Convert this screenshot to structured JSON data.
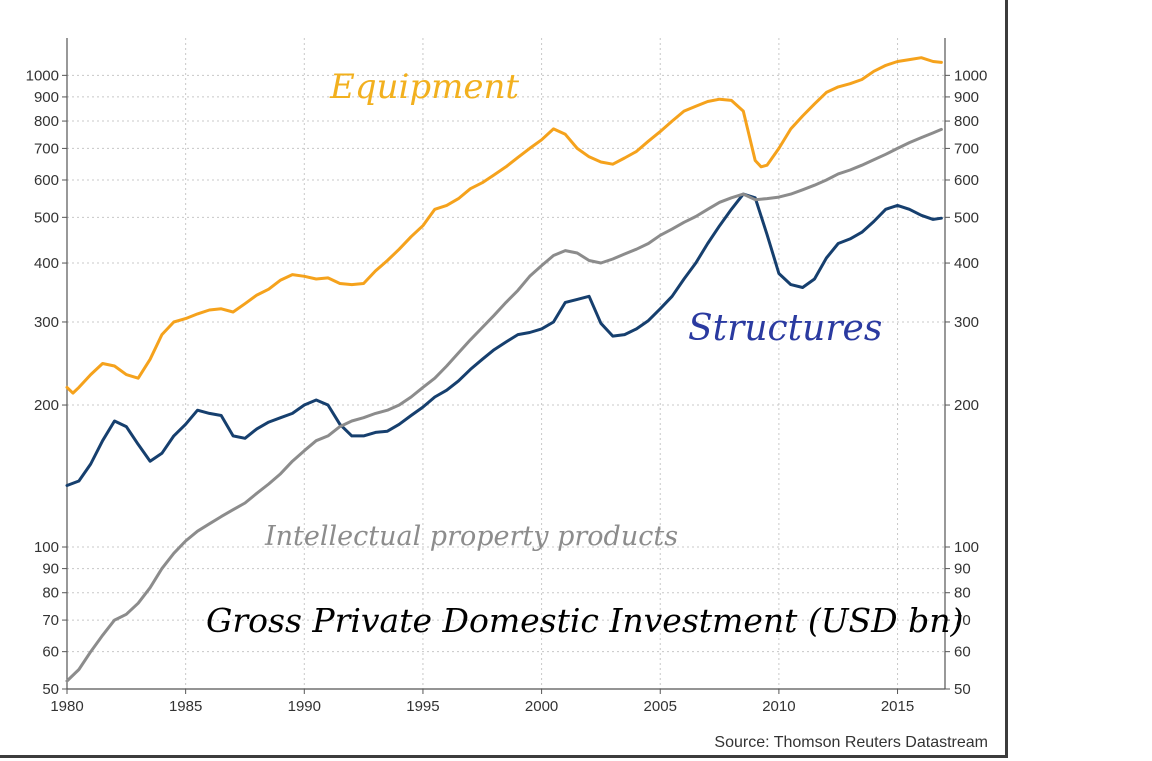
{
  "chart_data": {
    "type": "line",
    "title": "Gross Private Domestic Investment (USD bn)",
    "source": "Source: Thomson Reuters Datastream",
    "yscale": "log",
    "xlim": [
      1980,
      2017
    ],
    "ylim": [
      50,
      1200
    ],
    "grid": true,
    "x_ticks": [
      "1980",
      "1985",
      "1990",
      "1995",
      "2000",
      "2005",
      "2010",
      "2015"
    ],
    "y_ticks_left": [
      "1000",
      "900",
      "800",
      "700",
      "600",
      "500",
      "400",
      "300",
      "200",
      "100",
      "90",
      "80",
      "70",
      "60",
      "50"
    ],
    "y_ticks_right": [
      "1000",
      "900",
      "800",
      "700",
      "600",
      "500",
      "400",
      "300",
      "200",
      "100",
      "90",
      "80",
      "70",
      "60",
      "50"
    ],
    "colors": {
      "equipment": "#f5a21c",
      "structures": "#163f6e",
      "ip": "#8c8c8c",
      "annotation_title": "#000000",
      "annotation_equipment": "#f2b01e",
      "annotation_structures": "#2a3aa0",
      "annotation_ip": "#8c8c8c"
    },
    "series": [
      {
        "name": "Equipment",
        "x": [
          1980.0,
          1980.25,
          1980.5,
          1981.0,
          1981.5,
          1982.0,
          1982.5,
          1983.0,
          1983.5,
          1984.0,
          1984.5,
          1985.0,
          1985.5,
          1986.0,
          1986.5,
          1987.0,
          1987.5,
          1988.0,
          1988.5,
          1989.0,
          1989.5,
          1990.0,
          1990.5,
          1991.0,
          1991.5,
          1992.0,
          1992.5,
          1993.0,
          1993.5,
          1994.0,
          1994.5,
          1995.0,
          1995.5,
          1996.0,
          1996.5,
          1997.0,
          1997.5,
          1998.0,
          1998.5,
          1999.0,
          1999.5,
          2000.0,
          2000.5,
          2001.0,
          2001.5,
          2002.0,
          2002.5,
          2003.0,
          2003.5,
          2004.0,
          2004.5,
          2005.0,
          2005.5,
          2006.0,
          2006.5,
          2007.0,
          2007.5,
          2008.0,
          2008.5,
          2009.0,
          2009.25,
          2009.5,
          2010.0,
          2010.5,
          2011.0,
          2011.5,
          2012.0,
          2012.5,
          2013.0,
          2013.5,
          2014.0,
          2014.5,
          2015.0,
          2015.5,
          2016.0,
          2016.5,
          2016.85
        ],
        "values": [
          218,
          212,
          218,
          232,
          245,
          242,
          232,
          228,
          250,
          282,
          300,
          305,
          312,
          318,
          320,
          315,
          328,
          342,
          352,
          368,
          378,
          375,
          370,
          372,
          362,
          360,
          362,
          385,
          405,
          428,
          455,
          480,
          520,
          530,
          548,
          575,
          592,
          615,
          640,
          670,
          700,
          730,
          770,
          750,
          700,
          672,
          655,
          648,
          668,
          690,
          725,
          760,
          800,
          840,
          860,
          880,
          890,
          885,
          840,
          660,
          640,
          645,
          700,
          770,
          820,
          870,
          920,
          945,
          960,
          980,
          1020,
          1050,
          1070,
          1080,
          1090,
          1070,
          1065
        ]
      },
      {
        "name": "Structures",
        "x": [
          1980.0,
          1980.5,
          1981.0,
          1981.5,
          1982.0,
          1982.5,
          1983.0,
          1983.5,
          1984.0,
          1984.5,
          1985.0,
          1985.5,
          1986.0,
          1986.5,
          1987.0,
          1987.5,
          1988.0,
          1988.5,
          1989.0,
          1989.5,
          1990.0,
          1990.5,
          1991.0,
          1991.5,
          1992.0,
          1992.5,
          1993.0,
          1993.5,
          1994.0,
          1994.5,
          1995.0,
          1995.5,
          1996.0,
          1996.5,
          1997.0,
          1997.5,
          1998.0,
          1998.5,
          1999.0,
          1999.5,
          2000.0,
          2000.5,
          2001.0,
          2001.5,
          2002.0,
          2002.5,
          2003.0,
          2003.5,
          2004.0,
          2004.5,
          2005.0,
          2005.5,
          2006.0,
          2006.5,
          2007.0,
          2007.5,
          2008.0,
          2008.5,
          2009.0,
          2009.5,
          2010.0,
          2010.5,
          2011.0,
          2011.5,
          2012.0,
          2012.5,
          2013.0,
          2013.5,
          2014.0,
          2014.5,
          2015.0,
          2015.5,
          2016.0,
          2016.5,
          2016.85
        ],
        "values": [
          135,
          138,
          150,
          168,
          185,
          180,
          165,
          152,
          158,
          172,
          182,
          195,
          192,
          190,
          172,
          170,
          178,
          184,
          188,
          192,
          200,
          205,
          200,
          182,
          172,
          172,
          175,
          176,
          182,
          190,
          198,
          208,
          215,
          225,
          238,
          250,
          262,
          272,
          282,
          285,
          290,
          300,
          330,
          335,
          340,
          298,
          280,
          282,
          290,
          302,
          320,
          340,
          370,
          400,
          440,
          480,
          520,
          560,
          550,
          460,
          380,
          360,
          355,
          370,
          410,
          440,
          450,
          465,
          490,
          520,
          530,
          520,
          505,
          495,
          498
        ]
      },
      {
        "name": "Intellectual property products",
        "x": [
          1980.0,
          1980.5,
          1981.0,
          1981.5,
          1982.0,
          1982.5,
          1983.0,
          1983.5,
          1984.0,
          1984.5,
          1985.0,
          1985.5,
          1986.0,
          1986.5,
          1987.0,
          1987.5,
          1988.0,
          1988.5,
          1989.0,
          1989.5,
          1990.0,
          1990.5,
          1991.0,
          1991.5,
          1992.0,
          1992.5,
          1993.0,
          1993.5,
          1994.0,
          1994.5,
          1995.0,
          1995.5,
          1996.0,
          1996.5,
          1997.0,
          1997.5,
          1998.0,
          1998.5,
          1999.0,
          1999.5,
          2000.0,
          2000.5,
          2001.0,
          2001.5,
          2002.0,
          2002.5,
          2003.0,
          2003.5,
          2004.0,
          2004.5,
          2005.0,
          2005.5,
          2006.0,
          2006.5,
          2007.0,
          2007.5,
          2008.0,
          2008.5,
          2009.0,
          2009.5,
          2010.0,
          2010.5,
          2011.0,
          2011.5,
          2012.0,
          2012.5,
          2013.0,
          2013.5,
          2014.0,
          2014.5,
          2015.0,
          2015.5,
          2016.0,
          2016.5,
          2016.85
        ],
        "values": [
          52,
          55,
          60,
          65,
          70,
          72,
          76,
          82,
          90,
          97,
          103,
          108,
          112,
          116,
          120,
          124,
          130,
          136,
          143,
          152,
          160,
          168,
          172,
          180,
          185,
          188,
          192,
          195,
          200,
          208,
          218,
          228,
          242,
          258,
          275,
          292,
          310,
          330,
          350,
          375,
          395,
          415,
          425,
          420,
          405,
          400,
          408,
          418,
          428,
          440,
          458,
          472,
          488,
          502,
          520,
          538,
          550,
          560,
          545,
          548,
          552,
          560,
          572,
          585,
          600,
          618,
          630,
          645,
          662,
          680,
          700,
          720,
          738,
          755,
          768
        ]
      }
    ],
    "annotations": {
      "title": "Gross Private Domestic Investment (USD bn)",
      "equipment": "Equipment",
      "structures": "Structures",
      "ip": "Intellectual property products"
    }
  }
}
